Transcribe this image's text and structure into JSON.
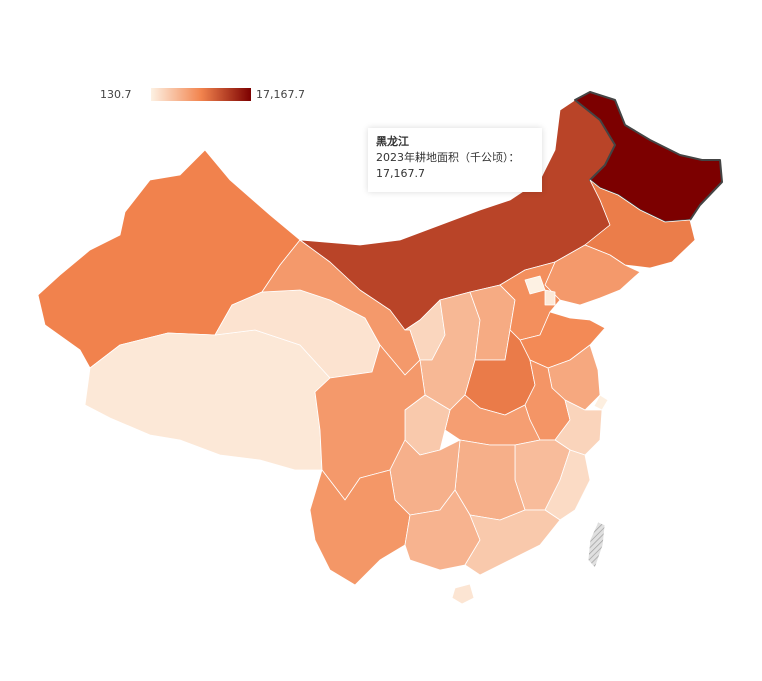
{
  "legend": {
    "min_label": "130.7",
    "max_label": "17,167.7",
    "min_value": 130.7,
    "max_value": 17167.7,
    "color_low": "#fdf1e3",
    "color_mid": "#f2844e",
    "color_high": "#7c0000"
  },
  "tooltip": {
    "region": "黑龙江",
    "metric": "2023年耕地面积（千公顷）：",
    "value": "17,167.7"
  },
  "colors": {
    "highlight_border": "#444444",
    "taiwan_hatch": "#bdbdbd"
  },
  "map_data": {
    "metric": "2023年耕地面积（千公顷）",
    "regions": [
      {
        "name": "黑龙江",
        "value": 17167.7,
        "highlight": true
      },
      {
        "name": "内蒙古",
        "value": 11600
      },
      {
        "name": "吉林",
        "value": 7400
      },
      {
        "name": "辽宁",
        "value": 5200
      },
      {
        "name": "新疆",
        "value": 7000
      },
      {
        "name": "河南",
        "value": 7500
      },
      {
        "name": "山东",
        "value": 6400
      },
      {
        "name": "河北",
        "value": 6000
      },
      {
        "name": "云南",
        "value": 5400
      },
      {
        "name": "四川",
        "value": 5200
      },
      {
        "name": "甘肃",
        "value": 5200
      },
      {
        "name": "安徽",
        "value": 5500
      },
      {
        "name": "贵州",
        "value": 3500
      },
      {
        "name": "广西",
        "value": 3300
      },
      {
        "name": "陕西",
        "value": 3000
      },
      {
        "name": "湖北",
        "value": 4800
      },
      {
        "name": "江苏",
        "value": 4100
      },
      {
        "name": "山西",
        "value": 3900
      },
      {
        "name": "湖南",
        "value": 3600
      },
      {
        "name": "江西",
        "value": 2700
      },
      {
        "name": "广东",
        "value": 1900
      },
      {
        "name": "重庆",
        "value": 1900
      },
      {
        "name": "宁夏",
        "value": 1200
      },
      {
        "name": "浙江",
        "value": 1300
      },
      {
        "name": "福建",
        "value": 930
      },
      {
        "name": "青海",
        "value": 560
      },
      {
        "name": "西藏",
        "value": 360
      },
      {
        "name": "海南",
        "value": 480
      },
      {
        "name": "天津",
        "value": 330
      },
      {
        "name": "北京",
        "value": 130.7
      },
      {
        "name": "上海",
        "value": 160
      }
    ]
  }
}
